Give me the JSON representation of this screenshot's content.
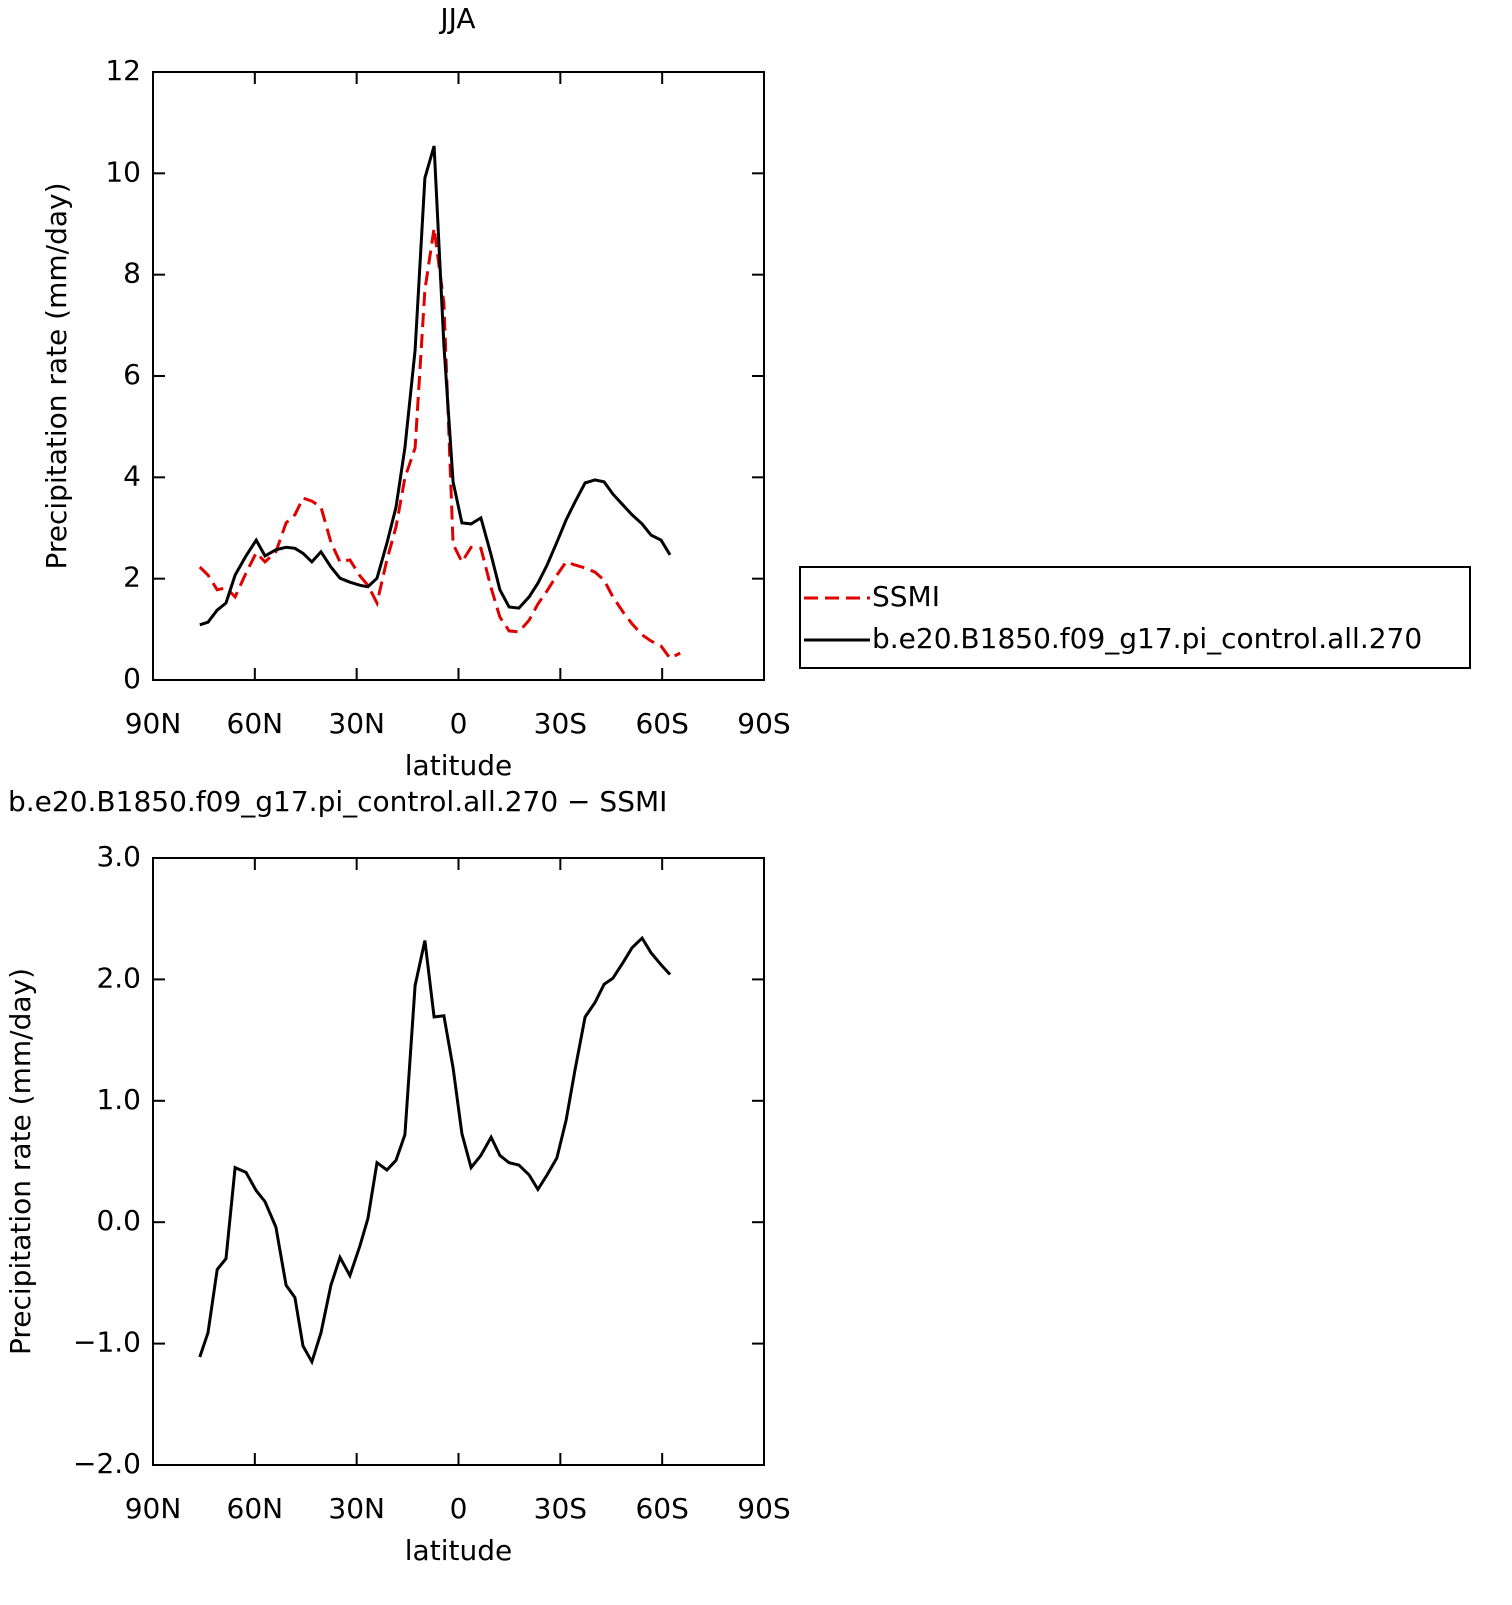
{
  "chart_data": [
    {
      "type": "line",
      "title": "JJA",
      "xlabel": "latitude",
      "ylabel": "Precipitation rate (mm/day)",
      "x": [
        76.2,
        73.8,
        71.1,
        68.5,
        65.8,
        62.6,
        59.6,
        57.0,
        53.8,
        50.8,
        48.2,
        45.8,
        43.2,
        40.5,
        37.6,
        34.9,
        32.0,
        29.0,
        26.7,
        24.0,
        21.1,
        18.4,
        15.8,
        12.8,
        9.9,
        7.2,
        4.3,
        1.6,
        -1.0,
        -3.7,
        -6.6,
        -9.6,
        -12.2,
        -14.9,
        -17.8,
        -20.8,
        -23.4,
        -26.1,
        -29.0,
        -31.7,
        -34.3,
        -37.3,
        -40.2,
        -42.9,
        -45.5,
        -48.5,
        -51.1,
        -54.1,
        -56.7,
        -59.7,
        -62.3,
        -65.3
      ],
      "series": [
        {
          "name": "SSMI",
          "color": "#e00000",
          "dashed": true,
          "values": [
            2.23,
            2.07,
            1.78,
            1.82,
            1.64,
            2.11,
            2.51,
            2.33,
            2.53,
            3.1,
            3.26,
            3.59,
            3.53,
            3.41,
            2.72,
            2.33,
            2.37,
            2.05,
            1.87,
            1.52,
            2.37,
            3.02,
            3.99,
            4.58,
            7.7,
            8.92,
            7.44,
            2.68,
            2.33,
            2.62,
            2.6,
            1.82,
            1.24,
            0.97,
            0.95,
            1.18,
            1.5,
            1.76,
            2.07,
            2.33,
            2.27,
            2.21,
            2.13,
            1.97,
            1.64,
            1.34,
            1.11,
            0.89,
            0.77,
            0.67,
            0.43,
            0.53
          ]
        },
        {
          "name": "b.e20.B1850.f09_g17.pi_control.all.270",
          "color": "#000000",
          "dashed": false,
          "values": [
            1.09,
            1.14,
            1.38,
            1.52,
            2.07,
            2.45,
            2.76,
            2.45,
            2.57,
            2.62,
            2.6,
            2.5,
            2.33,
            2.53,
            2.23,
            2.01,
            1.93,
            1.87,
            1.84,
            2.01,
            2.7,
            3.41,
            4.58,
            6.51,
            9.91,
            10.54,
            6.61,
            3.91,
            3.1,
            3.08,
            3.2,
            2.47,
            1.78,
            1.44,
            1.42,
            1.64,
            1.91,
            2.27,
            2.72,
            3.16,
            3.51,
            3.89,
            3.95,
            3.91,
            3.67,
            3.45,
            3.26,
            3.08,
            2.86,
            2.76,
            2.47,
            null
          ]
        }
      ],
      "xlim": [
        90,
        -90
      ],
      "xticks": [
        {
          "value": 90,
          "label": "90N"
        },
        {
          "value": 60,
          "label": "60N"
        },
        {
          "value": 30,
          "label": "30N"
        },
        0,
        {
          "value": -30,
          "label": "30S"
        },
        {
          "value": -60,
          "label": "60S"
        },
        {
          "value": -90,
          "label": "90S"
        }
      ],
      "ylim": [
        0,
        12
      ],
      "yticks": [
        0,
        2,
        4,
        6,
        8,
        10,
        12
      ],
      "legend": "right"
    },
    {
      "type": "line",
      "title": "b.e20.B1850.f09_g17.pi_control.all.270 − SSMI",
      "xlabel": "latitude",
      "ylabel": "Precipitation rate (mm/day)",
      "x": [
        76.2,
        73.8,
        71.1,
        68.5,
        65.8,
        62.6,
        59.6,
        57.0,
        53.8,
        50.8,
        48.2,
        45.8,
        43.2,
        40.5,
        37.6,
        34.9,
        32.0,
        29.0,
        26.7,
        24.0,
        21.1,
        18.4,
        15.8,
        12.8,
        9.9,
        7.2,
        4.3,
        1.6,
        -1.0,
        -3.7,
        -6.6,
        -9.6,
        -12.2,
        -14.9,
        -17.8,
        -20.8,
        -23.4,
        -26.1,
        -29.0,
        -31.7,
        -34.3,
        -37.3,
        -40.2,
        -42.9,
        -45.5,
        -48.5,
        -51.1,
        -54.1,
        -56.7,
        -59.7,
        -62.3
      ],
      "values": [
        -1.11,
        -0.91,
        -0.39,
        -0.3,
        0.45,
        0.41,
        0.26,
        0.17,
        -0.04,
        -0.52,
        -0.62,
        -1.02,
        -1.15,
        -0.91,
        -0.52,
        -0.29,
        -0.44,
        -0.19,
        0.03,
        0.49,
        0.43,
        0.51,
        0.72,
        1.95,
        2.32,
        1.69,
        1.7,
        1.27,
        0.73,
        0.45,
        0.55,
        0.7,
        0.55,
        0.49,
        0.47,
        0.39,
        0.27,
        0.39,
        0.53,
        0.84,
        1.25,
        1.69,
        1.81,
        1.96,
        2.01,
        2.14,
        2.26,
        2.34,
        2.22,
        2.12,
        2.04
      ],
      "color": "#000000",
      "xlim": [
        90,
        -90
      ],
      "xticks": [
        {
          "value": 90,
          "label": "90N"
        },
        {
          "value": 60,
          "label": "60N"
        },
        {
          "value": 30,
          "label": "30N"
        },
        0,
        {
          "value": -30,
          "label": "30S"
        },
        {
          "value": -60,
          "label": "60S"
        },
        {
          "value": -90,
          "label": "90S"
        }
      ],
      "ylim": [
        -2,
        3
      ],
      "yticks": [
        {
          "value": -2,
          "label": "−2.0"
        },
        {
          "value": -1,
          "label": "−1.0"
        },
        {
          "value": 0,
          "label": "0.0"
        },
        {
          "value": 1,
          "label": "1.0"
        },
        {
          "value": 2,
          "label": "2.0"
        },
        {
          "value": 3,
          "label": "3.0"
        }
      ]
    }
  ]
}
